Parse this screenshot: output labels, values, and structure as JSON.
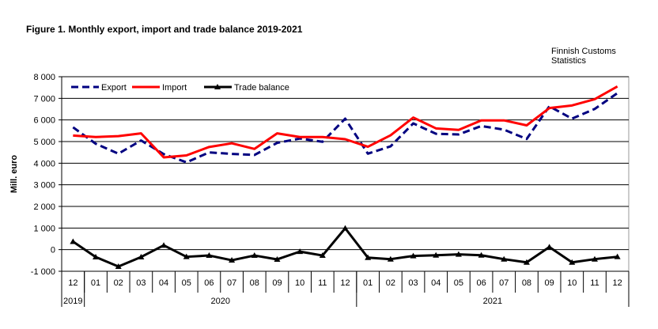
{
  "title": "Figure  1. Monthly  export, import and trade balance 2019-2021",
  "source_line1": "Finnish Customs",
  "source_line2": "Statistics",
  "chart_data": {
    "type": "line",
    "title": "Figure  1. Monthly  export, import and trade balance 2019-2021",
    "xlabel": "",
    "ylabel": "Mill. euro",
    "ylim": [
      -1000,
      8000
    ],
    "yticks": [
      8000,
      7000,
      6000,
      5000,
      4000,
      3000,
      2000,
      1000,
      0,
      -1000
    ],
    "ytick_labels": [
      "8 000",
      "7 000",
      "6 000",
      "5 000",
      "4 000",
      "3 000",
      "2 000",
      "1 000",
      "0",
      "-1 000"
    ],
    "grid": true,
    "legend": "top-left",
    "categories": [
      "12",
      "01",
      "02",
      "03",
      "04",
      "05",
      "06",
      "07",
      "08",
      "09",
      "10",
      "11",
      "12",
      "01",
      "02",
      "03",
      "04",
      "05",
      "06",
      "07",
      "08",
      "09",
      "10",
      "11",
      "12"
    ],
    "year_groups": [
      {
        "label": "2019",
        "count": 1
      },
      {
        "label": "2020",
        "count": 12
      },
      {
        "label": "2021",
        "count": 12
      }
    ],
    "series": [
      {
        "name": "Export",
        "color": "#000080",
        "style": "dashed",
        "values": [
          5660,
          4900,
          4440,
          5050,
          4420,
          4040,
          4500,
          4430,
          4380,
          4940,
          5140,
          4990,
          6060,
          4440,
          4780,
          5840,
          5360,
          5330,
          5720,
          5550,
          5120,
          6630,
          6060,
          6510,
          7240
        ]
      },
      {
        "name": "Import",
        "color": "#ff0000",
        "style": "solid",
        "values": [
          5280,
          5210,
          5250,
          5380,
          4270,
          4360,
          4750,
          4920,
          4660,
          5380,
          5210,
          5210,
          5110,
          4760,
          5290,
          6110,
          5610,
          5540,
          5980,
          5980,
          5750,
          6550,
          6670,
          6960,
          7550
        ]
      },
      {
        "name": "Trade balance",
        "color": "#000000",
        "style": "solid-triangle",
        "values": [
          370,
          -340,
          -780,
          -340,
          200,
          -330,
          -270,
          -490,
          -270,
          -450,
          -90,
          -270,
          990,
          -370,
          -440,
          -290,
          -260,
          -220,
          -260,
          -440,
          -590,
          120,
          -590,
          -440,
          -330
        ]
      }
    ]
  }
}
